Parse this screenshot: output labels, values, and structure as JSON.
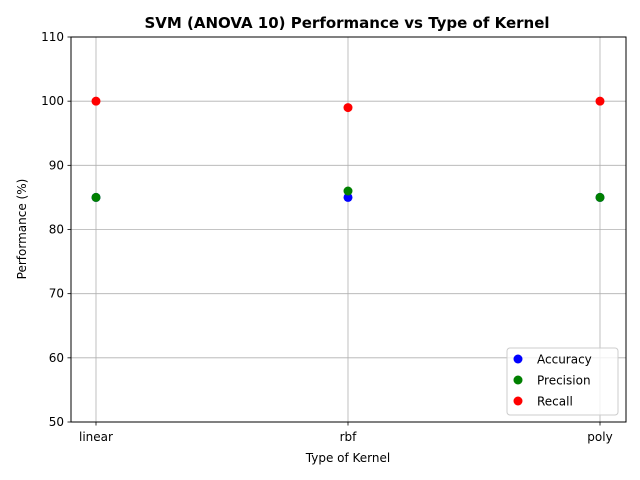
{
  "chart_data": {
    "type": "scatter",
    "title": "SVM (ANOVA 10) Performance vs Type of Kernel",
    "xlabel": "Type of Kernel",
    "ylabel": "Performance (%)",
    "categories": [
      "linear",
      "rbf",
      "poly"
    ],
    "ylim": [
      50,
      110
    ],
    "yticks": [
      50,
      60,
      70,
      80,
      90,
      100,
      110
    ],
    "grid": true,
    "legend_position": "lower right",
    "series": [
      {
        "name": "Accuracy",
        "color": "#0000ff",
        "values": [
          85,
          85,
          85
        ]
      },
      {
        "name": "Precision",
        "color": "#008000",
        "values": [
          85,
          86,
          85
        ]
      },
      {
        "name": "Recall",
        "color": "#ff0000",
        "values": [
          100,
          99,
          100
        ]
      }
    ]
  }
}
